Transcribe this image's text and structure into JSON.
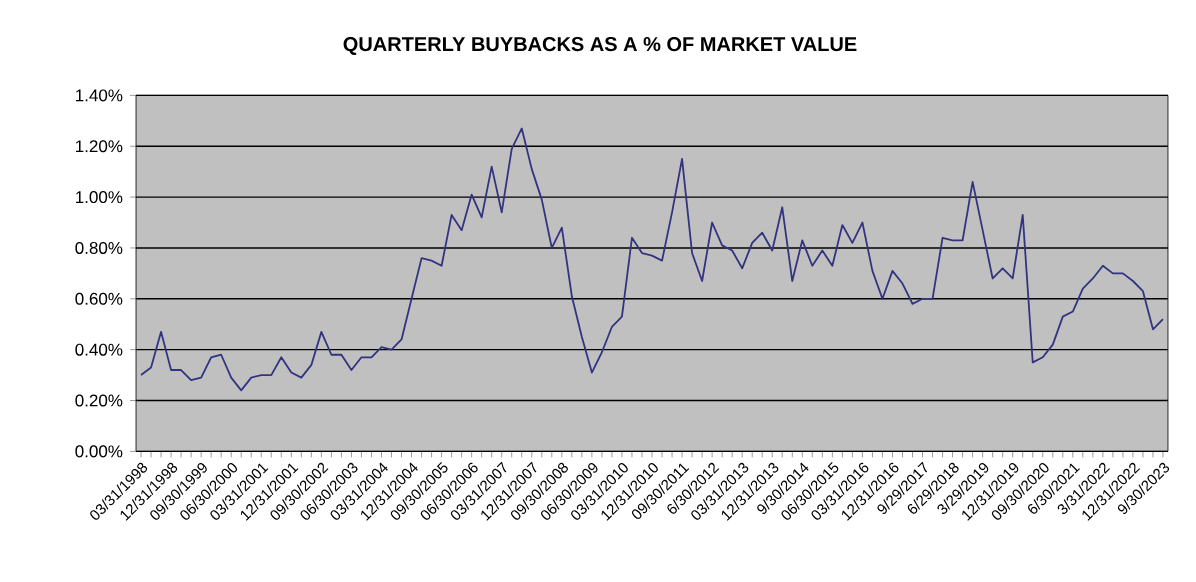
{
  "chart_data": {
    "type": "line",
    "title": "QUARTERLY  BUYBACKS  AS A % OF MARKET  VALUE",
    "categories": [
      "03/31/1998",
      null,
      null,
      "12/31/1998",
      null,
      null,
      "09/30/1999",
      null,
      null,
      "06/30/2000",
      null,
      null,
      "03/31/2001",
      null,
      null,
      "12/31/2001",
      null,
      null,
      "09/30/2002",
      null,
      null,
      "06/30/2003",
      null,
      null,
      "03/31/2004",
      null,
      null,
      "12/31/2004",
      null,
      null,
      "09/30/2005",
      null,
      null,
      "06/30/2006",
      null,
      null,
      "03/31/2007",
      null,
      null,
      "12/31/2007",
      null,
      null,
      "09/30/2008",
      null,
      null,
      "06/30/2009",
      null,
      null,
      "03/31/2010",
      null,
      null,
      "12/31/2010",
      null,
      null,
      "09/30/2011",
      null,
      null,
      "6/30/2012",
      null,
      null,
      "03/31/2013",
      null,
      null,
      "12/31/2013",
      null,
      null,
      "9/30/2014",
      null,
      null,
      "06/30/2015",
      null,
      null,
      "03/31/2016",
      null,
      null,
      "12/31/2016",
      null,
      null,
      "9/29/2017",
      null,
      null,
      "6/29/2018",
      null,
      null,
      "3/29/2019",
      null,
      null,
      "12/31/2019",
      null,
      null,
      "09/30/2020",
      null,
      null,
      "6/30/2021",
      null,
      null,
      "3/31/2022",
      null,
      null,
      "12/31/2022",
      null,
      null,
      "9/30/2023"
    ],
    "series": [
      {
        "color": "#333380",
        "values": [
          0.3,
          0.33,
          0.47,
          0.32,
          0.32,
          0.28,
          0.29,
          0.37,
          0.38,
          0.29,
          0.24,
          0.29,
          0.3,
          0.3,
          0.37,
          0.31,
          0.29,
          0.34,
          0.47,
          0.38,
          0.38,
          0.32,
          0.37,
          0.37,
          0.41,
          0.4,
          0.44,
          0.6,
          0.76,
          0.75,
          0.73,
          0.93,
          0.87,
          1.01,
          0.92,
          1.12,
          0.94,
          1.19,
          1.27,
          1.11,
          0.99,
          0.8,
          0.88,
          0.61,
          0.45,
          0.31,
          0.39,
          0.49,
          0.53,
          0.84,
          0.78,
          0.77,
          0.75,
          0.94,
          1.15,
          0.78,
          0.67,
          0.9,
          0.81,
          0.79,
          0.72,
          0.82,
          0.86,
          0.79,
          0.96,
          0.67,
          0.83,
          0.73,
          0.79,
          0.73,
          0.89,
          0.82,
          0.9,
          0.71,
          0.6,
          0.71,
          0.66,
          0.58,
          0.6,
          0.6,
          0.84,
          0.83,
          0.83,
          1.06,
          0.87,
          0.68,
          0.72,
          0.68,
          0.93,
          0.35,
          0.37,
          0.42,
          0.53,
          0.55,
          0.64,
          0.68,
          0.73,
          0.7,
          0.7,
          0.67,
          0.63,
          0.48,
          0.52
        ]
      }
    ],
    "ylim": [
      0,
      1.4
    ],
    "yticks": [
      {
        "value": 0,
        "label": "0.00%"
      },
      {
        "value": 0.2,
        "label": "0.20%"
      },
      {
        "value": 0.4,
        "label": "0.40%"
      },
      {
        "value": 0.6,
        "label": "0.60%"
      },
      {
        "value": 0.8,
        "label": "0.80%"
      },
      {
        "value": 1.0,
        "label": "1.00%"
      },
      {
        "value": 1.2,
        "label": "1.20%"
      },
      {
        "value": 1.4,
        "label": "1.40%"
      }
    ],
    "grid": "y"
  }
}
